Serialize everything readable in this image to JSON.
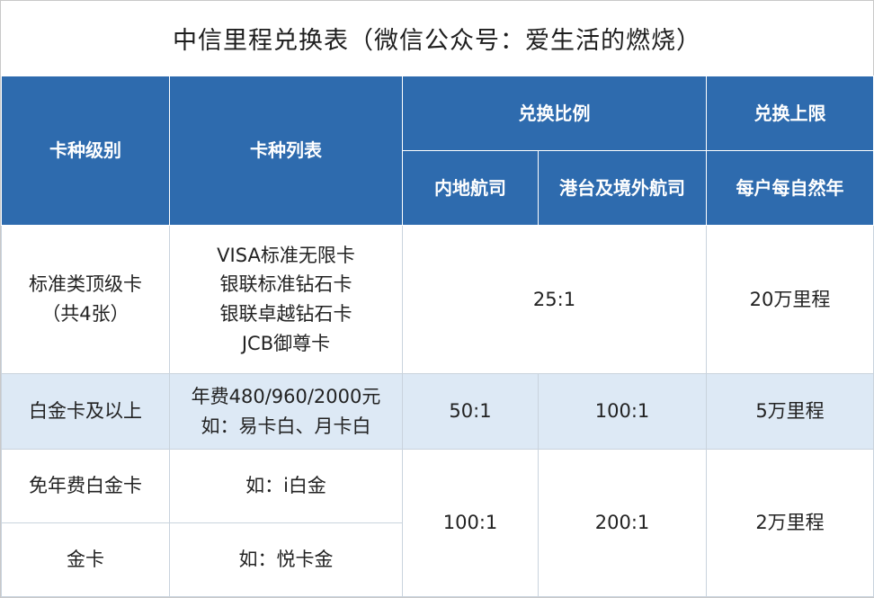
{
  "title": "中信里程兑换表（微信公众号：爱生活的燃烧）",
  "header": {
    "card_level": "卡种级别",
    "card_list": "卡种列表",
    "ratio": "兑换比例",
    "limit": "兑换上限",
    "domestic": "内地航司",
    "overseas": "港台及境外航司",
    "per_year": "每户每自然年"
  },
  "rows": [
    {
      "level": [
        "标准类顶级卡",
        "（共4张）"
      ],
      "cards": [
        "VISA标准无限卡",
        "银联标准钻石卡",
        "银联卓越钻石卡",
        "JCB御尊卡"
      ],
      "ratio": "25:1",
      "limit": "20万里程"
    },
    {
      "level": [
        "白金卡及以上"
      ],
      "cards": [
        "年费480/960/2000元",
        "如：易卡白、月卡白"
      ],
      "domestic": "50:1",
      "overseas": "100:1",
      "limit": "5万里程"
    },
    {
      "level": [
        "免年费白金卡"
      ],
      "cards": [
        "如：i白金"
      ],
      "domestic": "100:1",
      "overseas": "200:1",
      "limit": "2万里程"
    },
    {
      "level": [
        "金卡"
      ],
      "cards": [
        "如：悦卡金"
      ]
    }
  ],
  "colors": {
    "header_bg": "#2e6bae",
    "alt_row_bg": "#dde9f5"
  }
}
